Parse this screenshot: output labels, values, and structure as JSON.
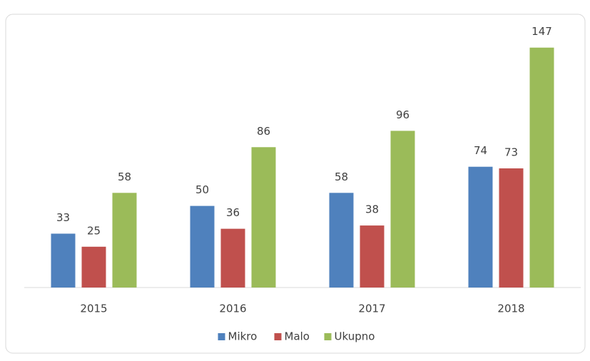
{
  "chart_data": {
    "type": "bar",
    "categories": [
      "2015",
      "2016",
      "2017",
      "2018"
    ],
    "series": [
      {
        "name": "Mikro",
        "color": "#4f81bd",
        "values": [
          33,
          50,
          58,
          74
        ]
      },
      {
        "name": "Malo",
        "color": "#c0504d",
        "values": [
          25,
          36,
          38,
          73
        ]
      },
      {
        "name": "Ukupno",
        "color": "#9bbb59",
        "values": [
          58,
          86,
          96,
          147
        ]
      }
    ],
    "ylim": [
      0,
      160
    ],
    "grid": false,
    "legend": "bottom"
  }
}
